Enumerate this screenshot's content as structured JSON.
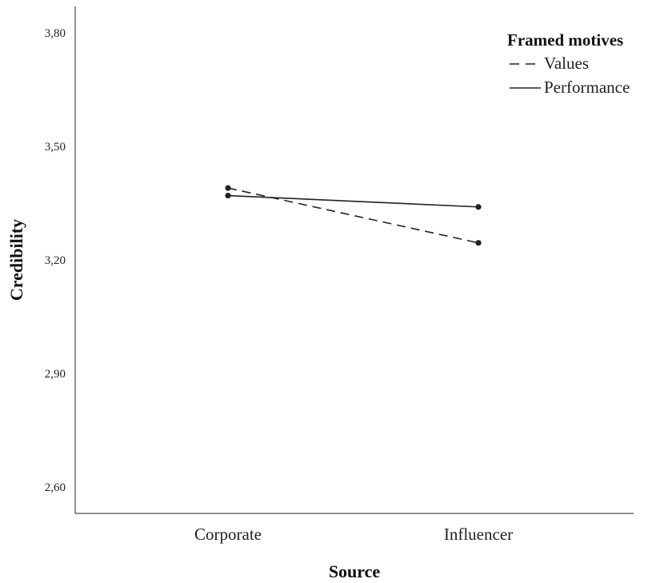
{
  "chart_data": {
    "type": "line",
    "categories": [
      "Corporate",
      "Influencer"
    ],
    "series": [
      {
        "name": "Values",
        "values": [
          3.39,
          3.245
        ],
        "style": "dashed"
      },
      {
        "name": "Performance",
        "values": [
          3.37,
          3.34
        ],
        "style": "solid"
      }
    ],
    "yticks": [
      "3,80",
      "3,50",
      "3,20",
      "2,90",
      "2,60"
    ],
    "ylim": [
      2.53,
      3.87
    ],
    "xlabel": "Source",
    "ylabel": "Credibility",
    "legend_title": "Framed motives",
    "legend_position": "top-right",
    "grid": false,
    "line_color": "#222222"
  }
}
